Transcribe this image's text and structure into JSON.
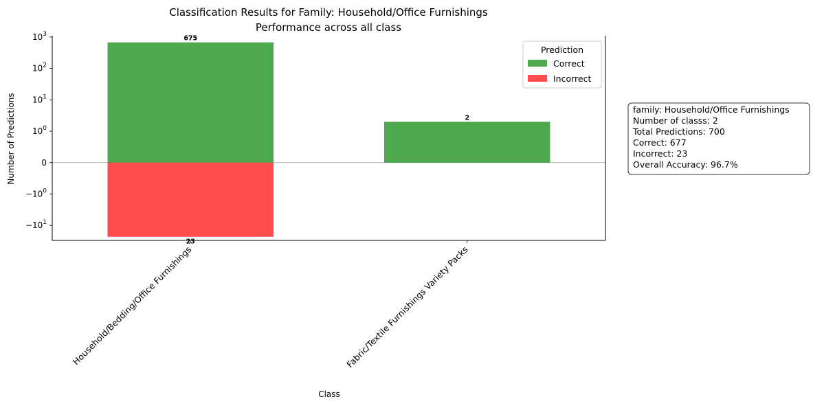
{
  "chart_data": {
    "type": "bar",
    "title": "Classification Results for Family: Household/Office Furnishings",
    "subtitle": "Performance across all class",
    "xlabel": "Class",
    "ylabel": "Number of Predictions",
    "yscale": "symlog",
    "categories": [
      "Household/Bedding/Office Furnishings",
      "Fabric/Textile Furnishings Variety Packs"
    ],
    "series": [
      {
        "name": "Correct",
        "values": [
          675,
          2
        ],
        "labels": [
          "675",
          "2"
        ],
        "color": "#4ea84e"
      },
      {
        "name": "Incorrect",
        "values": [
          -23,
          0
        ],
        "labels": [
          "23",
          ""
        ],
        "color": "#ff4c4c"
      }
    ],
    "yticks": [
      {
        "value": 1000,
        "base": "10",
        "exp": "3"
      },
      {
        "value": 100,
        "base": "10",
        "exp": "2"
      },
      {
        "value": 10,
        "base": "10",
        "exp": "1"
      },
      {
        "value": 1,
        "base": "10",
        "exp": "0"
      },
      {
        "value": 0,
        "base": "0",
        "exp": ""
      },
      {
        "value": -1,
        "base": "−10",
        "exp": "0"
      },
      {
        "value": -10,
        "base": "−10",
        "exp": "1"
      }
    ],
    "ylim": [
      -30,
      1100
    ],
    "legend": {
      "title": "Prediction",
      "position": "top-right"
    },
    "grid": false,
    "zero_line": true,
    "info_box": {
      "lines": [
        "family: Household/Office Furnishings",
        "Number of classs: 2",
        "Total Predictions: 700",
        "Correct: 677",
        "Incorrect: 23",
        "Overall Accuracy: 96.7%"
      ]
    }
  }
}
